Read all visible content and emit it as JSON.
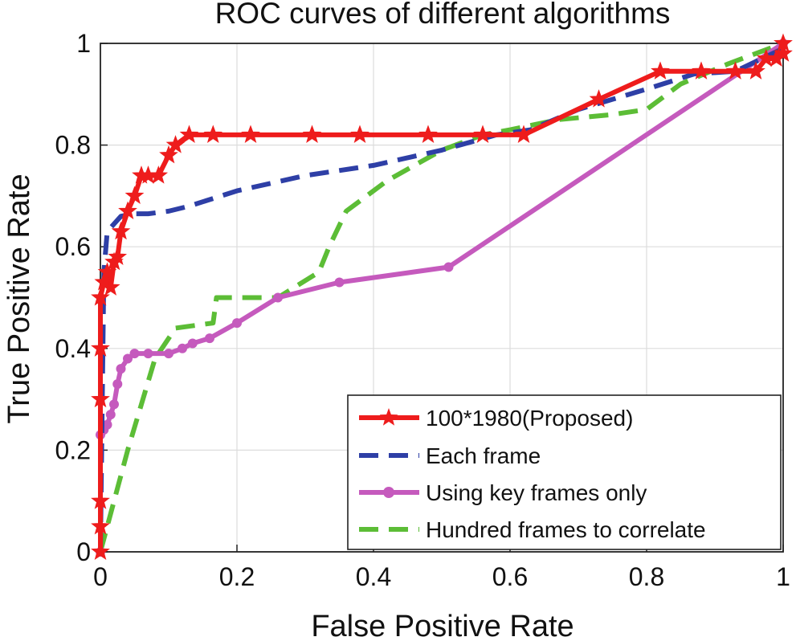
{
  "chart_data": {
    "type": "line",
    "title": "ROC curves of different algorithms",
    "xlabel": "False Positive Rate",
    "ylabel": "True Positive Rate",
    "xlim": [
      0,
      1
    ],
    "ylim": [
      0,
      1
    ],
    "grid": true,
    "legend_position": "bottom-right",
    "xticks": [
      {
        "value": 0,
        "label": "0"
      },
      {
        "value": 0.2,
        "label": "0.2"
      },
      {
        "value": 0.4,
        "label": "0.4"
      },
      {
        "value": 0.6,
        "label": "0.6"
      },
      {
        "value": 0.8,
        "label": "0.8"
      },
      {
        "value": 1,
        "label": "1"
      }
    ],
    "yticks": [
      {
        "value": 0,
        "label": "0"
      },
      {
        "value": 0.2,
        "label": "0.2"
      },
      {
        "value": 0.4,
        "label": "0.4"
      },
      {
        "value": 0.6,
        "label": "0.6"
      },
      {
        "value": 0.8,
        "label": "0.8"
      },
      {
        "value": 1,
        "label": "1"
      }
    ],
    "series": [
      {
        "name": "100*1980(Proposed)",
        "color": "#ee1c1c",
        "dash": "solid",
        "marker": "star",
        "x": [
          0,
          0,
          0,
          0,
          0,
          0,
          0.005,
          0.01,
          0.015,
          0.02,
          0.025,
          0.03,
          0.04,
          0.05,
          0.06,
          0.07,
          0.085,
          0.1,
          0.11,
          0.13,
          0.165,
          0.22,
          0.31,
          0.38,
          0.48,
          0.56,
          0.62,
          0.73,
          0.82,
          0.88,
          0.93,
          0.96,
          0.975,
          0.99,
          1,
          1
        ],
        "y": [
          0,
          0.05,
          0.1,
          0.3,
          0.4,
          0.5,
          0.53,
          0.55,
          0.52,
          0.57,
          0.58,
          0.63,
          0.67,
          0.7,
          0.74,
          0.74,
          0.74,
          0.78,
          0.8,
          0.82,
          0.82,
          0.82,
          0.82,
          0.82,
          0.82,
          0.82,
          0.82,
          0.89,
          0.945,
          0.945,
          0.945,
          0.945,
          0.97,
          0.97,
          0.98,
          1
        ]
      },
      {
        "name": "Each frame",
        "color": "#2e3fa6",
        "dash": "dashed",
        "marker": "none",
        "x": [
          0,
          0.005,
          0.01,
          0.03,
          0.05,
          0.07,
          0.1,
          0.13,
          0.2,
          0.3,
          0.4,
          0.5,
          0.58,
          0.63,
          0.7,
          0.8,
          0.87,
          0.93,
          1
        ],
        "y": [
          0,
          0.55,
          0.63,
          0.66,
          0.665,
          0.665,
          0.67,
          0.68,
          0.71,
          0.74,
          0.76,
          0.79,
          0.82,
          0.83,
          0.87,
          0.91,
          0.94,
          0.945,
          0.99
        ]
      },
      {
        "name": "Using key frames only",
        "color": "#c55abd",
        "dash": "solid",
        "marker": "dot",
        "x": [
          0,
          0,
          0.005,
          0.01,
          0.015,
          0.02,
          0.025,
          0.03,
          0.04,
          0.05,
          0.07,
          0.1,
          0.12,
          0.135,
          0.16,
          0.2,
          0.26,
          0.35,
          0.51,
          1
        ],
        "y": [
          0,
          0.23,
          0.24,
          0.25,
          0.27,
          0.29,
          0.33,
          0.36,
          0.38,
          0.39,
          0.39,
          0.39,
          0.4,
          0.41,
          0.42,
          0.45,
          0.5,
          0.53,
          0.56,
          1
        ]
      },
      {
        "name": "Hundred frames to correlate",
        "color": "#5cbd36",
        "dash": "dashed",
        "marker": "none",
        "x": [
          0,
          0.04,
          0.08,
          0.11,
          0.165,
          0.17,
          0.26,
          0.32,
          0.335,
          0.36,
          0.42,
          0.5,
          0.56,
          0.6,
          0.67,
          0.75,
          0.8,
          0.85,
          0.92,
          1
        ],
        "y": [
          0,
          0.2,
          0.38,
          0.44,
          0.45,
          0.5,
          0.5,
          0.55,
          0.6,
          0.67,
          0.73,
          0.79,
          0.82,
          0.83,
          0.85,
          0.86,
          0.87,
          0.92,
          0.96,
          1
        ]
      }
    ]
  }
}
